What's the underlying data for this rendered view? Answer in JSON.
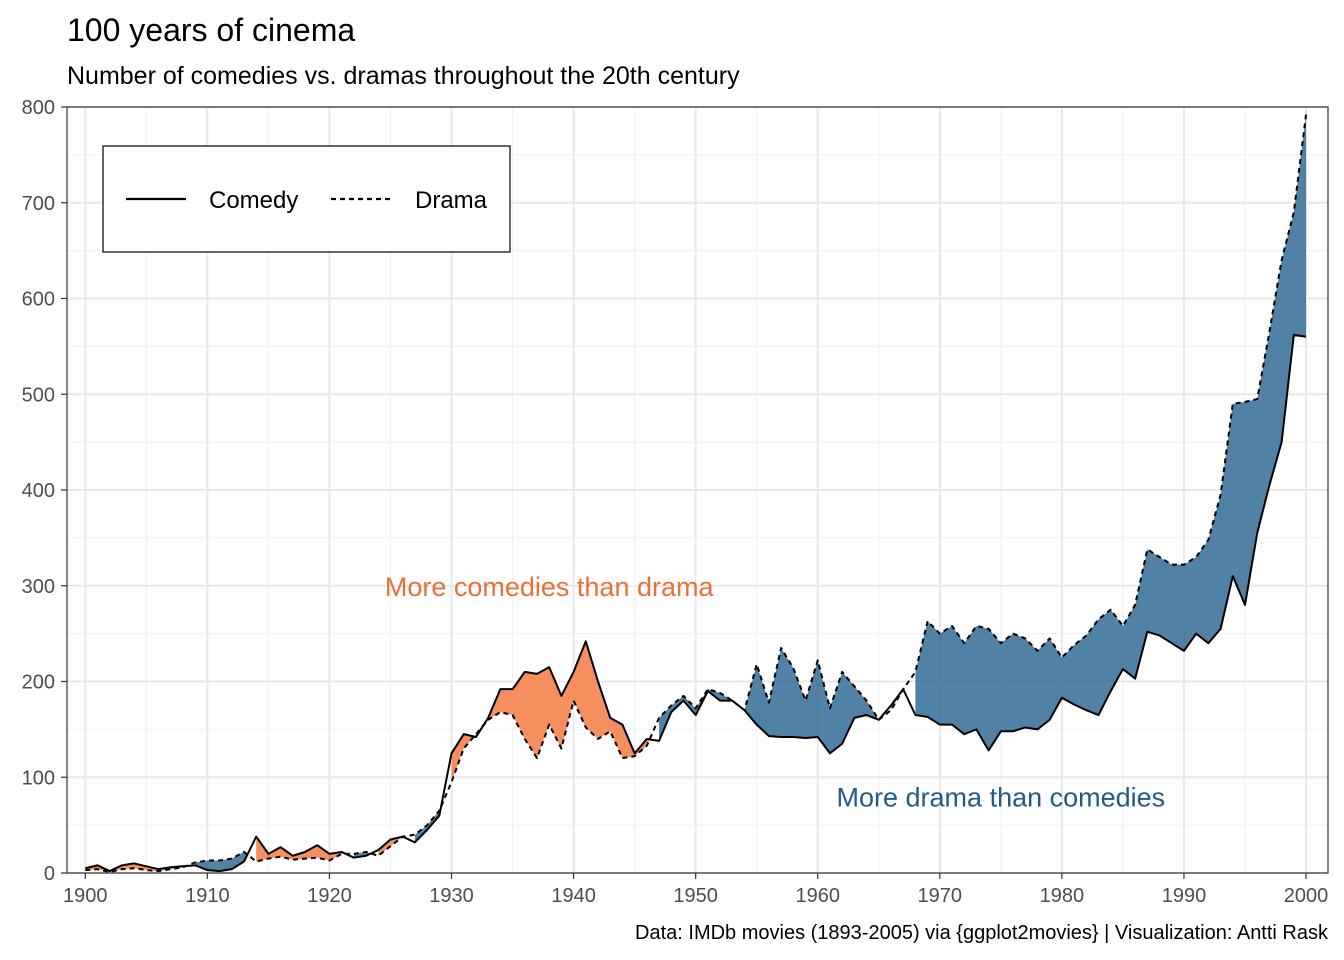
{
  "chart_data": {
    "type": "area",
    "title": "100 years of cinema",
    "subtitle": "Number of comedies vs. dramas throughout the 20th century",
    "caption": "Data: IMDb movies (1893-2005) via {ggplot2movies} | Visualization: Antti Rask",
    "xlabel": "",
    "ylabel": "",
    "xlim": [
      1898.5,
      2001.8
    ],
    "ylim": [
      0,
      800
    ],
    "x_ticks": [
      1900,
      1910,
      1920,
      1930,
      1940,
      1950,
      1960,
      1970,
      1980,
      1990,
      2000
    ],
    "y_ticks": [
      0,
      100,
      200,
      300,
      400,
      500,
      600,
      700,
      800
    ],
    "grid": true,
    "legend": {
      "position": "top-left",
      "entries": [
        {
          "label": "Comedy",
          "linetype": "solid"
        },
        {
          "label": "Drama",
          "linetype": "dashed"
        }
      ]
    },
    "fill_colors": {
      "more_comedies": "#f4834f",
      "more_drama": "#2c6593"
    },
    "annotations": [
      {
        "text": "More comedies than drama",
        "x": 1938,
        "y": 300,
        "color": "#e8703a"
      },
      {
        "text": "More drama than comedies",
        "x": 1975,
        "y": 80,
        "color": "#245a8a"
      }
    ],
    "x": [
      1900,
      1901,
      1902,
      1903,
      1904,
      1905,
      1906,
      1907,
      1908,
      1909,
      1910,
      1911,
      1912,
      1913,
      1914,
      1915,
      1916,
      1917,
      1918,
      1919,
      1920,
      1921,
      1922,
      1923,
      1924,
      1925,
      1926,
      1927,
      1928,
      1929,
      1930,
      1931,
      1932,
      1933,
      1934,
      1935,
      1936,
      1937,
      1938,
      1939,
      1940,
      1941,
      1942,
      1943,
      1944,
      1945,
      1946,
      1947,
      1948,
      1949,
      1950,
      1951,
      1952,
      1953,
      1954,
      1955,
      1956,
      1957,
      1958,
      1959,
      1960,
      1961,
      1962,
      1963,
      1964,
      1965,
      1966,
      1967,
      1968,
      1969,
      1970,
      1971,
      1972,
      1973,
      1974,
      1975,
      1976,
      1977,
      1978,
      1979,
      1980,
      1981,
      1982,
      1983,
      1984,
      1985,
      1986,
      1987,
      1988,
      1989,
      1990,
      1991,
      1992,
      1993,
      1994,
      1995,
      1996,
      1997,
      1998,
      1999,
      2000
    ],
    "series": [
      {
        "name": "Comedy",
        "values": [
          5,
          8,
          2,
          8,
          10,
          7,
          4,
          6,
          7,
          8,
          3,
          2,
          4,
          12,
          38,
          20,
          27,
          18,
          22,
          29,
          20,
          22,
          16,
          18,
          24,
          35,
          38,
          32,
          45,
          60,
          125,
          145,
          142,
          162,
          192,
          192,
          210,
          208,
          215,
          185,
          210,
          242,
          200,
          162,
          155,
          125,
          140,
          138,
          168,
          180,
          165,
          190,
          180,
          180,
          170,
          155,
          143,
          142,
          142,
          141,
          142,
          125,
          135,
          162,
          165,
          160,
          175,
          192,
          165,
          163,
          155,
          155,
          145,
          150,
          128,
          148,
          148,
          152,
          150,
          160,
          183,
          176,
          170,
          165,
          190,
          213,
          203,
          252,
          248,
          240,
          232,
          250,
          240,
          255,
          310,
          280,
          355,
          405,
          450,
          562,
          560
        ]
      },
      {
        "name": "Drama",
        "values": [
          3,
          4,
          1,
          4,
          5,
          3,
          2,
          4,
          6,
          11,
          13,
          13,
          15,
          22,
          12,
          15,
          17,
          14,
          15,
          16,
          13,
          20,
          20,
          22,
          18,
          28,
          38,
          40,
          50,
          65,
          95,
          130,
          145,
          160,
          168,
          165,
          140,
          120,
          155,
          130,
          180,
          152,
          140,
          148,
          120,
          122,
          133,
          162,
          175,
          185,
          172,
          192,
          188,
          180,
          170,
          218,
          178,
          235,
          214,
          180,
          222,
          172,
          210,
          195,
          180,
          160,
          170,
          192,
          210,
          263,
          250,
          258,
          240,
          258,
          255,
          240,
          250,
          245,
          232,
          245,
          225,
          238,
          248,
          265,
          275,
          258,
          280,
          338,
          330,
          322,
          322,
          330,
          348,
          395,
          490,
          492,
          495,
          565,
          640,
          690,
          792
        ]
      }
    ]
  }
}
